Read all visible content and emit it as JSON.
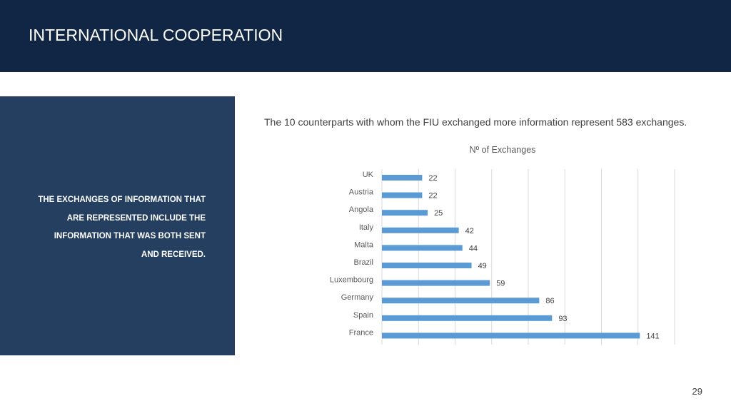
{
  "header": {
    "title": "INTERNATIONAL COOPERATION"
  },
  "side_panel": {
    "lines": [
      "THE EXCHANGES OF INFORMATION THAT",
      "ARE REPRESENTED INCLUDE THE",
      "INFORMATION THAT WAS BOTH SENT",
      "AND RECEIVED."
    ]
  },
  "subtitle": "The 10 counterparts with whom the FIU exchanged more information represent 583 exchanges.",
  "page_number": "29",
  "colors": {
    "header_bg": "#112644",
    "panel_bg": "#243f60",
    "bar": "#5b9bd5",
    "grid": "#d9d9d9"
  },
  "chart_data": {
    "type": "bar",
    "orientation": "horizontal",
    "title": "Nº of Exchanges",
    "categories": [
      "UK",
      "Austria",
      "Angola",
      "Italy",
      "Malta",
      "Brazil",
      "Luxembourg",
      "Germany",
      "Spain",
      "France"
    ],
    "values": [
      22,
      22,
      25,
      42,
      44,
      49,
      59,
      86,
      93,
      141
    ],
    "xlim": [
      0,
      160
    ],
    "grid": true,
    "data_labels": true,
    "legend": "none"
  }
}
